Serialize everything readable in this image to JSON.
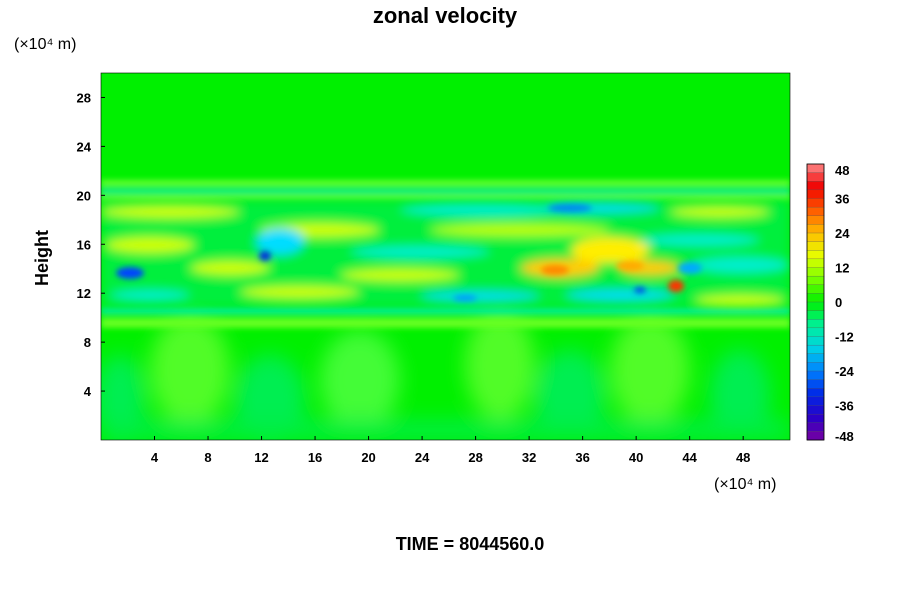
{
  "chart_data": {
    "type": "heatmap",
    "title": "zonal velocity",
    "ylabel": "Height",
    "x_unit": "(×10⁴ m)",
    "y_unit": "(×10⁴ m)",
    "x_ticks": [
      4,
      8,
      12,
      16,
      20,
      24,
      28,
      32,
      36,
      40,
      44,
      48
    ],
    "y_ticks": [
      4,
      8,
      12,
      16,
      20,
      24,
      28
    ],
    "xlim": [
      0,
      51.5
    ],
    "ylim": [
      0,
      30
    ],
    "colorbar": {
      "ticks": [
        48,
        36,
        24,
        12,
        0,
        -12,
        -24,
        -36,
        -48
      ],
      "range": [
        -48,
        48
      ]
    },
    "footer": "TIME = 8044560.0",
    "colors": {
      "background_field": "#00ee00",
      "positive_strong": "#ff0000",
      "negative_strong": "#0000cc"
    }
  }
}
